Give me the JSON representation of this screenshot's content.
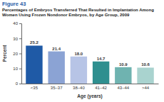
{
  "chart_data": {
    "type": "bar",
    "title": "Figure 43",
    "subtitle": "Percentages of Embryos Transferred That Resulted in Implantation Among Women Using Frozen Nondonor Embryos, by Age Group, 2009",
    "x_label": "Age (years)",
    "y_label": "Percent",
    "categories": [
      "<35",
      "35–37",
      "38–40",
      "41–42",
      "43–44",
      ">44"
    ],
    "values": [
      25.2,
      21.4,
      18.0,
      14.7,
      10.9,
      10.6
    ],
    "value_labels": [
      "25.2",
      "21.4",
      "18.0",
      "14.7",
      "10.9",
      "10.6"
    ],
    "colors": [
      "#1f5aa6",
      "#8ba3d4",
      "#b7c4e6",
      "#2f8f8f",
      "#6fb3b0",
      "#a9d3cf"
    ],
    "ylim": [
      0,
      40
    ],
    "yticks": [
      0,
      10,
      20,
      30,
      40
    ],
    "grid": false,
    "data_labels": true
  }
}
